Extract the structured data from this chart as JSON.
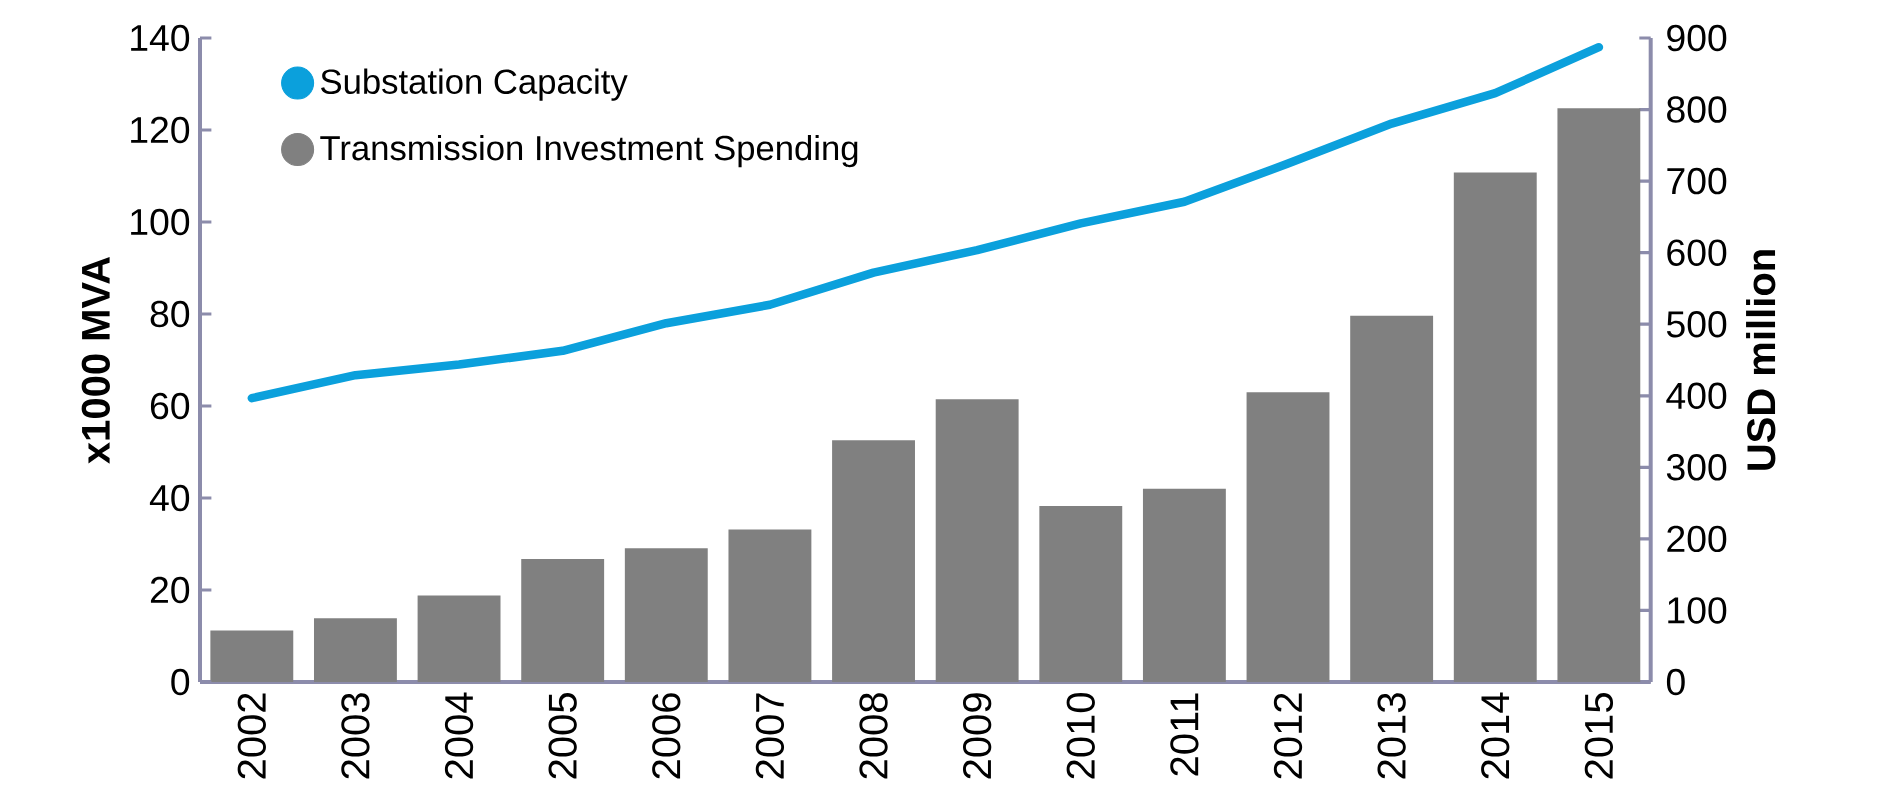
{
  "chart_data": {
    "type": "bar",
    "categories": [
      "2002",
      "2003",
      "2004",
      "2005",
      "2006",
      "2007",
      "2008",
      "2009",
      "2010",
      "2011",
      "2012",
      "2013",
      "2014",
      "2015"
    ],
    "series": [
      {
        "name": "Substation Capacity",
        "type": "line",
        "color": "#0ba0dc",
        "values": [
          61.7,
          66.7,
          69,
          72,
          78,
          82,
          89,
          93.9,
          99.7,
          104.4,
          112.7,
          121.4,
          128,
          138
        ]
      },
      {
        "name": "Transmission Investment Spending",
        "axis": "y2",
        "color": "#808080",
        "values": [
          72,
          89,
          121,
          172,
          187,
          213,
          338,
          395,
          246,
          270,
          405,
          512,
          712,
          802
        ]
      }
    ],
    "ylabel": "x1000  MVA",
    "y2label": "USD million",
    "ylim": [
      0,
      140
    ],
    "yticks": [
      0,
      20,
      40,
      60,
      80,
      100,
      120,
      140
    ],
    "y2lim": [
      0,
      900
    ],
    "y2ticks": [
      0,
      100,
      200,
      300,
      400,
      500,
      600,
      700,
      800,
      900
    ],
    "legend": "top left"
  }
}
